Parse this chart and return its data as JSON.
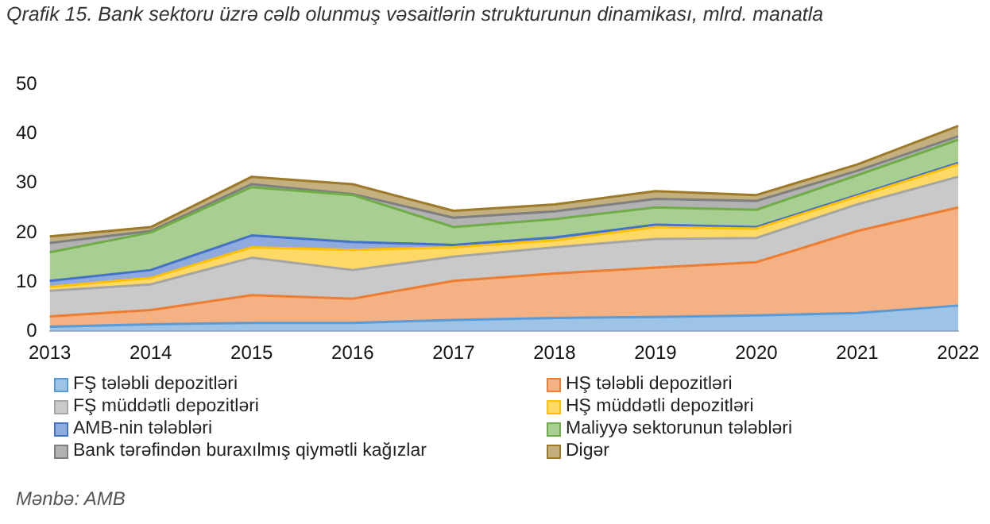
{
  "chart_data": {
    "type": "area",
    "stacked": true,
    "title": "Qrafik 15. Bank sektoru üzrə cəlb olunmuş vəsaitlərin strukturunun dinamikası, mlrd. manatla",
    "categories": [
      "2013",
      "2014",
      "2015",
      "2016",
      "2017",
      "2018",
      "2019",
      "2020",
      "2021",
      "2022"
    ],
    "ylim": [
      0,
      50
    ],
    "yticks": [
      0,
      10,
      20,
      30,
      40,
      50
    ],
    "grid": false,
    "legend": "bottom",
    "annotations": [
      "Mənbə: AMB"
    ],
    "series": [
      {
        "name": "FŞ tələbli depozitləri",
        "color": "#5b9bd5",
        "values": [
          0.9,
          1.4,
          1.7,
          1.7,
          2.3,
          2.7,
          2.9,
          3.2,
          3.7,
          5.2
        ]
      },
      {
        "name": "HŞ tələbli depozitləri",
        "color": "#ed7d31",
        "values": [
          2.1,
          2.9,
          5.6,
          4.9,
          7.9,
          9.0,
          10.0,
          10.8,
          16.6,
          19.9
        ]
      },
      {
        "name": "FŞ müddətli depozitləri",
        "color": "#a5a5a5",
        "values": [
          5.2,
          5.2,
          7.6,
          5.8,
          4.9,
          5.3,
          5.8,
          4.9,
          5.4,
          6.2
        ]
      },
      {
        "name": "HŞ müddətli depozitləri",
        "color": "#ffc000",
        "values": [
          0.8,
          1.3,
          2.1,
          4.1,
          1.9,
          1.4,
          2.4,
          1.9,
          1.6,
          2.5
        ]
      },
      {
        "name": "AMB-nin tələbləri",
        "color": "#4472c4",
        "values": [
          1.2,
          1.6,
          2.4,
          1.6,
          0.5,
          0.6,
          0.5,
          0.3,
          0.3,
          0.3
        ]
      },
      {
        "name": "Maliyyə sektorunun tələbləri",
        "color": "#70ad47",
        "values": [
          5.8,
          7.6,
          9.8,
          9.5,
          3.6,
          3.7,
          3.5,
          3.5,
          4.0,
          4.7
        ]
      },
      {
        "name": "Bank tərəfindən buraxılmış qiymətli kağızlar",
        "color": "#7f7f7f",
        "values": [
          1.9,
          0.3,
          0.6,
          0.2,
          1.9,
          1.6,
          1.7,
          1.8,
          0.9,
          0.7
        ]
      },
      {
        "name": "Digər",
        "color": "#9c7a2a",
        "values": [
          1.3,
          0.8,
          1.5,
          2.0,
          1.4,
          1.4,
          1.6,
          1.2,
          1.3,
          2.1
        ]
      }
    ]
  }
}
